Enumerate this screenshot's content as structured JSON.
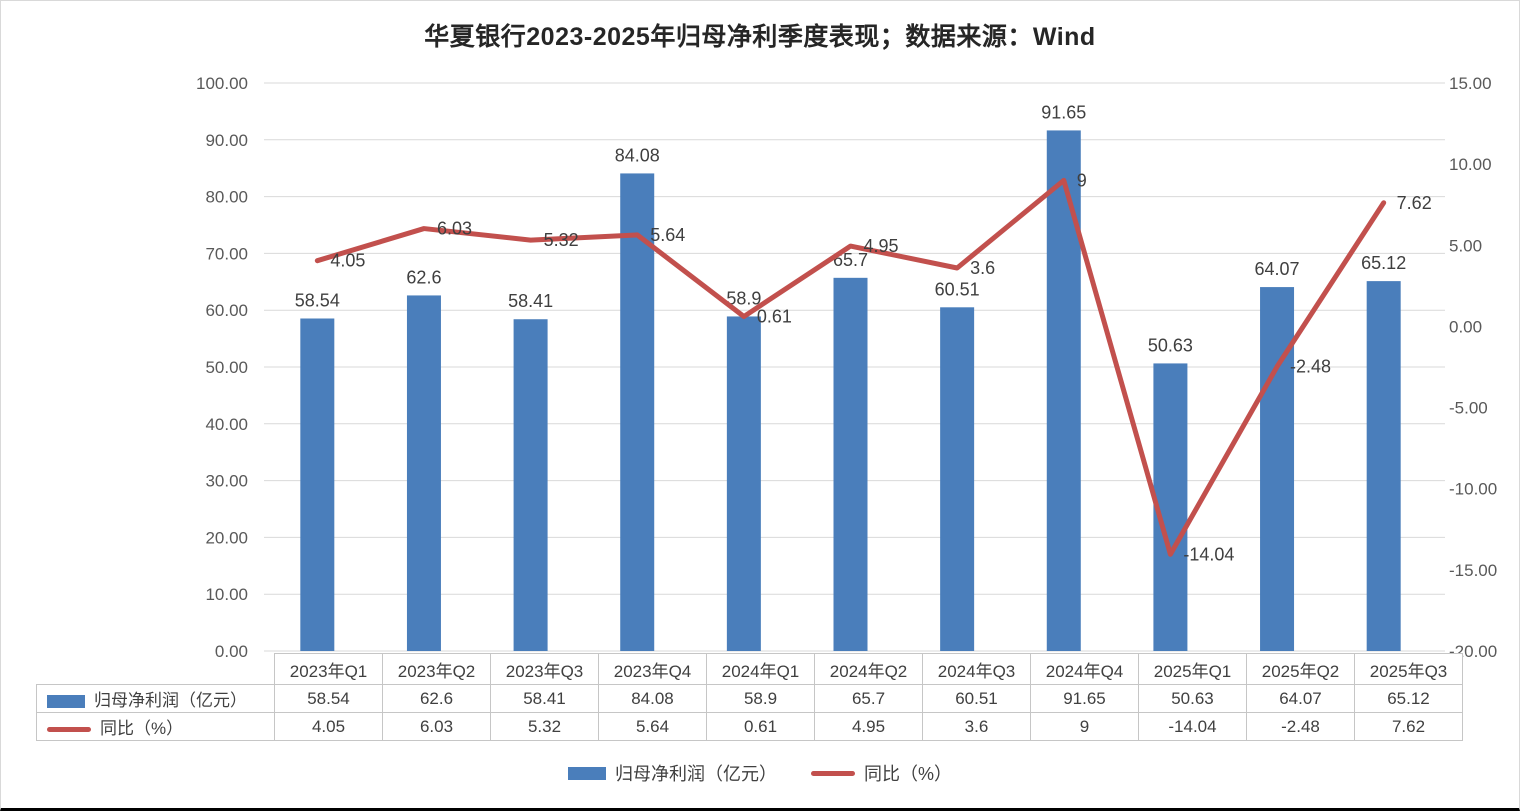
{
  "title": "华夏银行2023-2025年归母净利季度表现；数据来源：Wind",
  "colors": {
    "bar": "#4A7EBB",
    "line": "#C2504D",
    "grid": "#D9D9D9",
    "axis_text": "#595959",
    "label_text": "#3F3F3F",
    "table_border": "#C6C6C6"
  },
  "chart_data": {
    "type": "bar+line",
    "title": "华夏银行2023-2025年归母净利季度表现；数据来源：Wind",
    "categories": [
      "2023年Q1",
      "2023年Q2",
      "2023年Q3",
      "2023年Q4",
      "2024年Q1",
      "2024年Q2",
      "2024年Q3",
      "2024年Q4",
      "2025年Q1",
      "2025年Q2",
      "2025年Q3"
    ],
    "series": [
      {
        "name": "归母净利润（亿元）",
        "type": "bar",
        "axis": "left",
        "values": [
          58.54,
          62.6,
          58.41,
          84.08,
          58.9,
          65.7,
          60.51,
          91.65,
          50.63,
          64.07,
          65.12
        ]
      },
      {
        "name": "同比（%）",
        "type": "line",
        "axis": "right",
        "values": [
          4.05,
          6.03,
          5.32,
          5.64,
          0.61,
          4.95,
          3.6,
          9,
          -14.04,
          -2.48,
          7.62
        ]
      }
    ],
    "left_axis": {
      "min": 0,
      "max": 100,
      "step": 10,
      "ticks": [
        "100.00",
        "90.00",
        "80.00",
        "70.00",
        "60.00",
        "50.00",
        "40.00",
        "30.00",
        "20.00",
        "10.00",
        "0.00"
      ]
    },
    "right_axis": {
      "min": -20,
      "max": 15,
      "step": 5,
      "ticks": [
        "15.00",
        "10.00",
        "5.00",
        "0.00",
        "-5.00",
        "-10.00",
        "-15.00",
        "-20.00"
      ]
    },
    "grid": true,
    "legend_position": "bottom"
  },
  "legend": {
    "items": [
      {
        "label": "归母净利润（亿元）",
        "swatch": "bar"
      },
      {
        "label": "同比（%）",
        "swatch": "line"
      }
    ]
  }
}
